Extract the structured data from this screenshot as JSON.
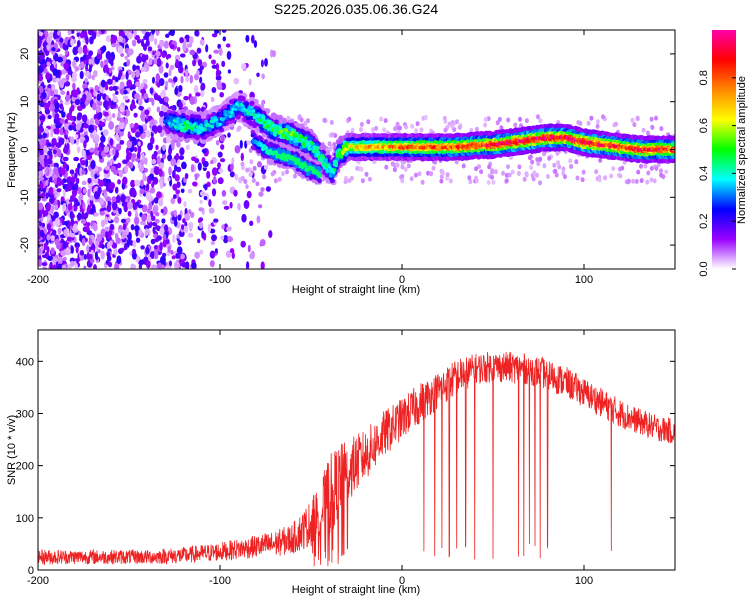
{
  "title": "S225.2026.035.06.36.G24",
  "chart_data": [
    {
      "id": "spectrogram",
      "type": "heatmap",
      "title": "S225.2026.035.06.36.G24",
      "xlabel": "Height of straight line (km)",
      "ylabel": "Frequency (Hz)",
      "xlim": [
        -200,
        150
      ],
      "ylim": [
        -25,
        25
      ],
      "xticks": [
        -200,
        -100,
        0,
        100
      ],
      "xtick_labels": [
        "-200",
        "-100",
        "0",
        "100"
      ],
      "yticks": [
        -20,
        -10,
        0,
        10,
        20
      ],
      "ytick_labels": [
        "-20",
        "-10",
        "0",
        "10",
        "20"
      ],
      "colorbar": {
        "label": "Normalized spectral amplitude",
        "range": [
          0,
          1
        ],
        "ticks": [
          0.0,
          0.2,
          0.4,
          0.6,
          0.8
        ],
        "tick_labels": [
          "0.0",
          "0.2",
          "0.4",
          "0.6",
          "0.8"
        ],
        "colors": [
          "#ffffff",
          "#9900ff",
          "#0000ff",
          "#00ffff",
          "#00ff00",
          "#ffff00",
          "#ff8800",
          "#ff0000",
          "#ff00aa"
        ]
      },
      "ridge": {
        "description": "main frequency ridge (height km, frequency Hz, amplitude)",
        "points": [
          [
            -130,
            6,
            0.3
          ],
          [
            -120,
            5,
            0.45
          ],
          [
            -110,
            4.5,
            0.4
          ],
          [
            -100,
            6,
            0.35
          ],
          [
            -90,
            9,
            0.35
          ],
          [
            -80,
            7,
            0.4
          ],
          [
            -70,
            4,
            0.5
          ],
          [
            -60,
            3,
            0.5
          ],
          [
            -50,
            1,
            0.45
          ],
          [
            -42,
            -3,
            0.45
          ],
          [
            -38,
            -5,
            0.4
          ],
          [
            -35,
            -1,
            0.5
          ],
          [
            -30,
            0.5,
            0.6
          ],
          [
            -20,
            0.5,
            0.7
          ],
          [
            -10,
            0.5,
            0.72
          ],
          [
            0,
            0.5,
            0.75
          ],
          [
            10,
            0.5,
            0.78
          ],
          [
            20,
            0.5,
            0.8
          ],
          [
            30,
            0.5,
            0.82
          ],
          [
            40,
            0.8,
            0.85
          ],
          [
            50,
            1,
            0.88
          ],
          [
            60,
            1.5,
            0.9
          ],
          [
            70,
            2,
            0.9
          ],
          [
            80,
            2.5,
            0.92
          ],
          [
            90,
            2.5,
            0.9
          ],
          [
            100,
            1.5,
            0.9
          ],
          [
            110,
            1,
            0.88
          ],
          [
            120,
            0.5,
            0.85
          ],
          [
            130,
            0,
            0.85
          ],
          [
            140,
            0,
            0.85
          ],
          [
            150,
            0,
            0.85
          ]
        ],
        "secondary_points": [
          [
            -82,
            2,
            0.3
          ],
          [
            -75,
            0,
            0.4
          ],
          [
            -68,
            -1,
            0.45
          ],
          [
            -60,
            -2,
            0.45
          ],
          [
            -52,
            -4,
            0.45
          ],
          [
            -45,
            -5,
            0.45
          ]
        ]
      }
    },
    {
      "id": "snr",
      "type": "line",
      "xlabel": "Height of straight line (km)",
      "ylabel": "SNR (10 * v/v)",
      "xlim": [
        -200,
        150
      ],
      "ylim": [
        0,
        460
      ],
      "xticks": [
        -200,
        -100,
        0,
        100
      ],
      "xtick_labels": [
        "-200",
        "-100",
        "0",
        "100"
      ],
      "yticks": [
        0,
        100,
        200,
        300,
        400
      ],
      "ytick_labels": [
        "0",
        "100",
        "200",
        "300",
        "400"
      ],
      "color": "#ee2222",
      "envelope": {
        "description": "approximate mean SNR (height km, SNR) with noise amplitude",
        "points": [
          [
            -200,
            25,
            15
          ],
          [
            -180,
            25,
            14
          ],
          [
            -160,
            25,
            14
          ],
          [
            -140,
            25,
            14
          ],
          [
            -120,
            28,
            16
          ],
          [
            -100,
            35,
            18
          ],
          [
            -90,
            40,
            20
          ],
          [
            -80,
            45,
            22
          ],
          [
            -70,
            50,
            25
          ],
          [
            -60,
            60,
            30
          ],
          [
            -50,
            90,
            45
          ],
          [
            -45,
            110,
            60
          ],
          [
            -40,
            140,
            80
          ],
          [
            -35,
            170,
            70
          ],
          [
            -30,
            190,
            60
          ],
          [
            -20,
            220,
            50
          ],
          [
            -10,
            260,
            45
          ],
          [
            0,
            290,
            40
          ],
          [
            10,
            320,
            40
          ],
          [
            20,
            345,
            35
          ],
          [
            30,
            370,
            35
          ],
          [
            40,
            385,
            30
          ],
          [
            50,
            390,
            30
          ],
          [
            60,
            388,
            30
          ],
          [
            70,
            385,
            30
          ],
          [
            80,
            375,
            30
          ],
          [
            90,
            360,
            30
          ],
          [
            100,
            340,
            28
          ],
          [
            110,
            320,
            28
          ],
          [
            120,
            300,
            28
          ],
          [
            130,
            285,
            25
          ],
          [
            140,
            272,
            25
          ],
          [
            150,
            265,
            25
          ]
        ]
      },
      "dropouts": [
        -42,
        -38,
        -35,
        -30,
        12,
        18,
        22,
        26,
        30,
        35,
        40,
        50,
        64,
        67,
        70,
        73,
        76,
        80,
        115
      ]
    }
  ]
}
